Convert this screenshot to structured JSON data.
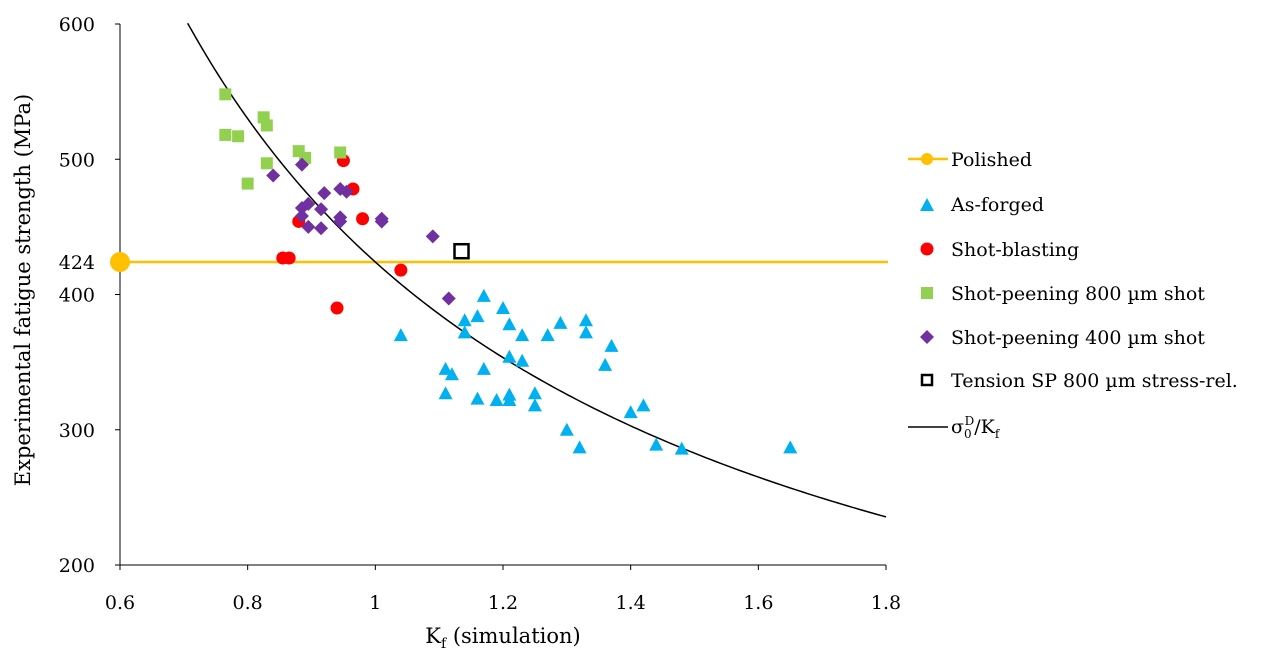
{
  "chart_data": {
    "type": "scatter",
    "xlabel": "K",
    "xlabel_sub": "f",
    "xlabel_rest": " (simulation)",
    "ylabel": "Experimental fatigue strength (MPa)",
    "xlim": [
      0.6,
      1.8
    ],
    "ylim": [
      200,
      600
    ],
    "x_ticks": [
      0.6,
      0.8,
      1,
      1.2,
      1.4,
      1.6,
      1.8
    ],
    "x_tick_labels": [
      "0.6",
      "0.8",
      "1",
      "1.2",
      "1.4",
      "1.6",
      "1.8"
    ],
    "y_ticks": [
      200,
      300,
      400,
      424,
      500,
      600
    ],
    "y_tick_labels": [
      "200",
      "300",
      "400",
      "424",
      "500",
      "600"
    ],
    "grid": false,
    "legend_position": "right",
    "reference_line": {
      "name": "Polished",
      "y": 424,
      "color": "#ffc000"
    },
    "curve": {
      "name": "σ0D/Kf",
      "label_main": "σ",
      "label_sub": "0",
      "label_sup": "D",
      "label_div": "/K",
      "label_div_sub": "f",
      "numerator": 424,
      "x_start": 0.706,
      "x_end": 1.8,
      "color": "#000000"
    },
    "series": [
      {
        "name": "As-forged",
        "marker": "triangle",
        "color": "#00b0f0",
        "points": [
          [
            1.04,
            370
          ],
          [
            1.11,
            345
          ],
          [
            1.12,
            341
          ],
          [
            1.11,
            327
          ],
          [
            1.14,
            381
          ],
          [
            1.14,
            372
          ],
          [
            1.16,
            384
          ],
          [
            1.17,
            399
          ],
          [
            1.17,
            345
          ],
          [
            1.16,
            323
          ],
          [
            1.19,
            322
          ],
          [
            1.2,
            390
          ],
          [
            1.21,
            378
          ],
          [
            1.21,
            354
          ],
          [
            1.21,
            322
          ],
          [
            1.21,
            326
          ],
          [
            1.23,
            370
          ],
          [
            1.23,
            351
          ],
          [
            1.25,
            327
          ],
          [
            1.25,
            318
          ],
          [
            1.27,
            370
          ],
          [
            1.29,
            379
          ],
          [
            1.3,
            300
          ],
          [
            1.32,
            287
          ],
          [
            1.33,
            381
          ],
          [
            1.33,
            372
          ],
          [
            1.36,
            348
          ],
          [
            1.37,
            362
          ],
          [
            1.4,
            313
          ],
          [
            1.42,
            318
          ],
          [
            1.44,
            289
          ],
          [
            1.48,
            286
          ],
          [
            1.65,
            287
          ]
        ]
      },
      {
        "name": "Shot-blasting",
        "marker": "circle",
        "color": "#ff0000",
        "points": [
          [
            0.95,
            499
          ],
          [
            0.965,
            478
          ],
          [
            0.98,
            456
          ],
          [
            0.88,
            454
          ],
          [
            0.855,
            427
          ],
          [
            0.865,
            427
          ],
          [
            1.04,
            418
          ],
          [
            0.94,
            390
          ]
        ]
      },
      {
        "name": "Shot-peening 800 µm shot",
        "marker": "square",
        "color": "#92d050",
        "points": [
          [
            0.765,
            548
          ],
          [
            0.825,
            531
          ],
          [
            0.83,
            525
          ],
          [
            0.765,
            518
          ],
          [
            0.785,
            517
          ],
          [
            0.88,
            506
          ],
          [
            0.945,
            505
          ],
          [
            0.89,
            501
          ],
          [
            0.83,
            497
          ],
          [
            0.8,
            482
          ]
        ]
      },
      {
        "name": "Shot-peening 400 µm shot",
        "marker": "diamond",
        "color": "#7030a0",
        "points": [
          [
            0.84,
            488
          ],
          [
            0.885,
            496
          ],
          [
            0.885,
            464
          ],
          [
            0.885,
            458
          ],
          [
            0.895,
            467
          ],
          [
            0.895,
            450
          ],
          [
            0.915,
            449
          ],
          [
            0.915,
            463
          ],
          [
            0.92,
            475
          ],
          [
            0.945,
            478
          ],
          [
            0.955,
            476
          ],
          [
            0.945,
            457
          ],
          [
            0.945,
            454
          ],
          [
            1.01,
            456
          ],
          [
            1.01,
            454
          ],
          [
            1.09,
            443
          ],
          [
            1.115,
            397
          ]
        ]
      },
      {
        "name": "Tension SP 800 µm stress-rel.",
        "marker": "open-square",
        "color": "#000000",
        "points": [
          [
            1.135,
            432
          ]
        ]
      }
    ]
  },
  "legend": {
    "polished": "Polished",
    "as_forged": "As-forged",
    "shot_blasting": "Shot-blasting",
    "sp800": "Shot-peening 800 µm shot",
    "sp400": "Shot-peening 400 µm shot",
    "tension_sp": "Tension SP 800 µm stress-rel."
  }
}
